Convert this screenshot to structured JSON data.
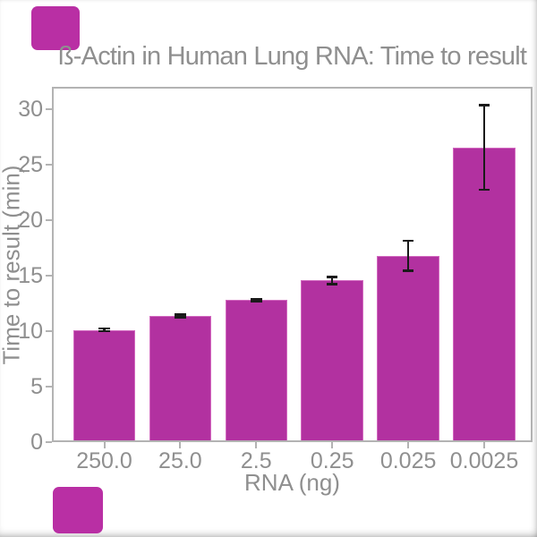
{
  "figure": {
    "background": "#ffffff"
  },
  "decor": {
    "square_color": "#b92fa4"
  },
  "chart_data": {
    "type": "bar",
    "title": "ß-Actin in Human Lung RNA: Time to result",
    "xlabel": "RNA (ng)",
    "ylabel": "Time to result (min)",
    "categories": [
      "250.0",
      "25.0",
      "2.5",
      "0.25",
      "0.025",
      "0.0025"
    ],
    "values": [
      10.1,
      11.35,
      12.8,
      14.55,
      16.8,
      26.55
    ],
    "errors": [
      0.12,
      0.12,
      0.1,
      0.33,
      1.35,
      3.8
    ],
    "ylim": [
      0,
      32
    ],
    "yticks": [
      0,
      5,
      10,
      15,
      20,
      25,
      30
    ],
    "grid": false,
    "legend": null,
    "colors": {
      "bar_fill": "#b231a0",
      "bar_edge": "#d269bf",
      "error_bar": "#1a1a1a",
      "spine": "#b3b3b3",
      "tick_mark": "#b3b3b3",
      "text": "#8f8f8f"
    }
  }
}
